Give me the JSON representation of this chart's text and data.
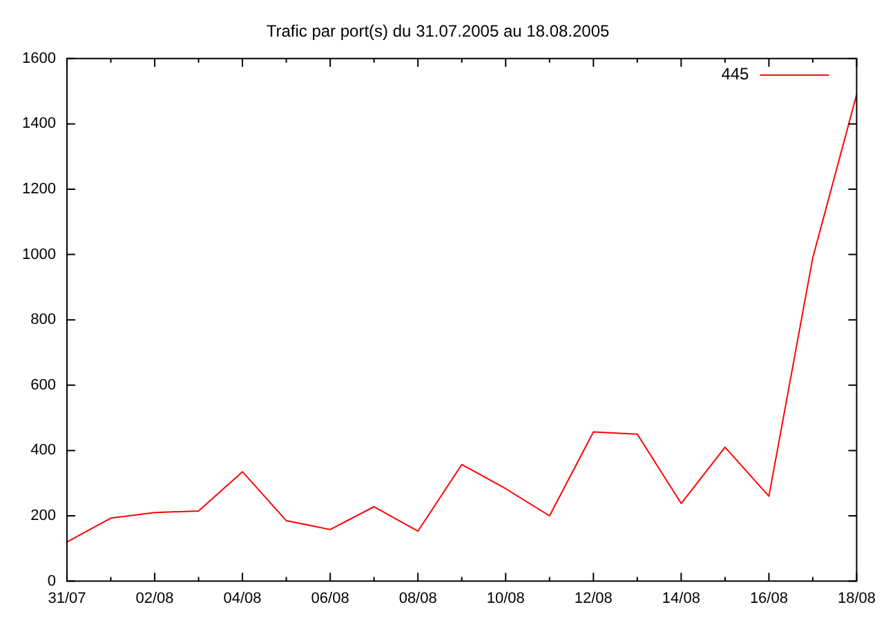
{
  "chart_data": {
    "type": "line",
    "title": "Trafic par port(s) du 31.07.2005 au 18.08.2005",
    "categories": [
      "31/07",
      null,
      "02/08",
      null,
      "04/08",
      null,
      "06/08",
      null,
      "08/08",
      null,
      "10/08",
      null,
      "12/08",
      null,
      "14/08",
      null,
      "16/08",
      null,
      "18/08"
    ],
    "series": [
      {
        "name": "445",
        "color": "#ff0000",
        "values": [
          120,
          193,
          210,
          215,
          335,
          185,
          158,
          228,
          153,
          357,
          283,
          200,
          457,
          450,
          238,
          410,
          260,
          990,
          1490
        ]
      }
    ],
    "ylim": [
      0,
      1600
    ],
    "yticks": [
      0,
      200,
      400,
      600,
      800,
      1000,
      1200,
      1400,
      1600
    ],
    "grid": false,
    "legend": "top right",
    "marker": "none",
    "line_style": "solid"
  }
}
